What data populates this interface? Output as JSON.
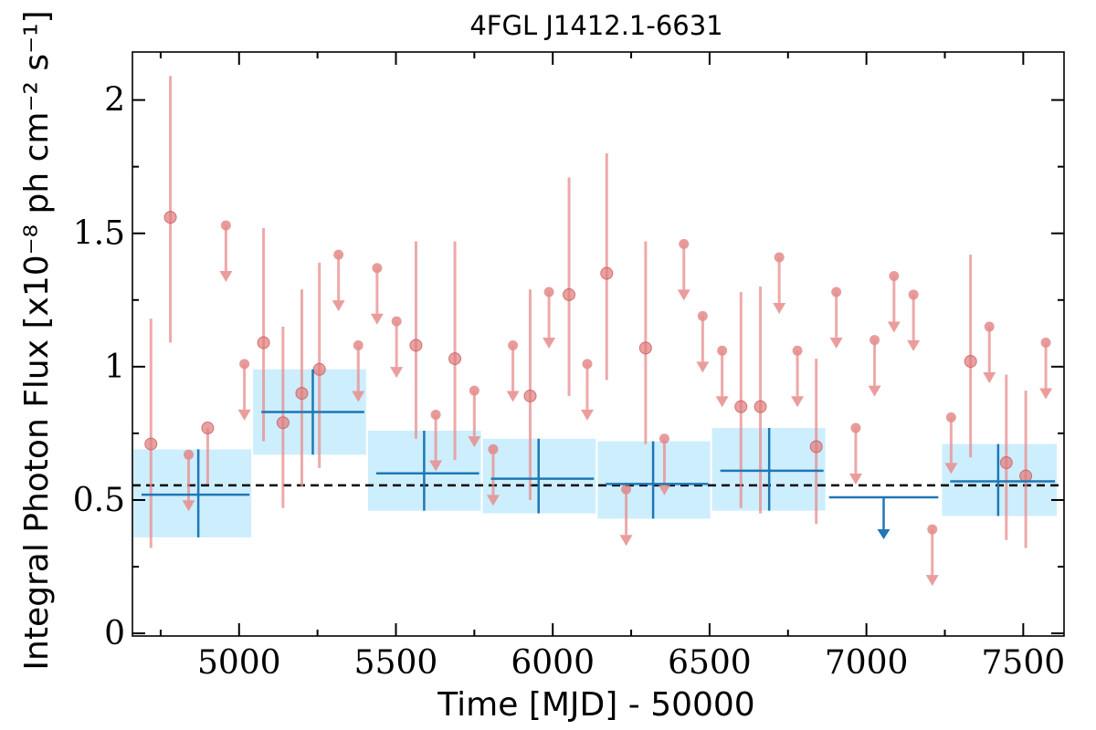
{
  "chart_data": {
    "type": "scatter",
    "title": "4FGL J1412.1-6631",
    "xlabel": "Time [MJD] - 50000",
    "ylabel": "Integral Photon Flux [x10⁻⁸ ph cm⁻² s⁻¹]",
    "xlim": [
      4660,
      7630
    ],
    "ylim": [
      -0.01,
      2.18
    ],
    "xticks": [
      5000,
      5500,
      6000,
      6500,
      7000,
      7500
    ],
    "xtick_labels": [
      "5000",
      "5500",
      "6000",
      "6500",
      "7000",
      "7500"
    ],
    "yticks": [
      0,
      0.5,
      1,
      1.5,
      2
    ],
    "ytick_labels": [
      "0",
      "0.5",
      "1",
      "1.5",
      "2"
    ],
    "grid": false,
    "average_flux": 0.555,
    "colors": {
      "short_bins": "#e88c8c",
      "short_bins_point": "#e07a7a",
      "long_bins": "#1f77b4",
      "long_bins_band": "#cdeefd",
      "average_line": "#000000"
    },
    "short_bin_points": [
      {
        "x": 4719,
        "y": 0.71,
        "lo": 0.32,
        "hi": 1.18
      },
      {
        "x": 4781,
        "y": 1.56,
        "lo": 1.09,
        "hi": 2.09
      },
      {
        "x": 4900,
        "y": 0.77,
        "lo": 0.56,
        "hi": 0.77
      }
    ],
    "short_bin_points_cont": [
      {
        "x": 5078,
        "y": 1.09,
        "lo": 0.72,
        "hi": 1.52
      },
      {
        "x": 5140,
        "y": 0.79,
        "lo": 0.47,
        "hi": 1.15
      },
      {
        "x": 5200,
        "y": 0.9,
        "lo": 0.55,
        "hi": 1.29
      },
      {
        "x": 5256,
        "y": 0.99,
        "lo": 0.62,
        "hi": 1.39
      },
      {
        "x": 5564,
        "y": 1.08,
        "lo": 0.73,
        "hi": 1.47
      },
      {
        "x": 5688,
        "y": 1.03,
        "lo": 0.65,
        "hi": 1.47
      },
      {
        "x": 5928,
        "y": 0.89,
        "lo": 0.5,
        "hi": 1.29
      },
      {
        "x": 6052,
        "y": 1.27,
        "lo": 0.89,
        "hi": 1.71
      },
      {
        "x": 6172,
        "y": 1.35,
        "lo": 0.95,
        "hi": 1.8
      },
      {
        "x": 6296,
        "y": 1.07,
        "lo": 0.71,
        "hi": 1.47
      },
      {
        "x": 6600,
        "y": 0.85,
        "lo": 0.47,
        "hi": 1.28
      },
      {
        "x": 6662,
        "y": 0.85,
        "lo": 0.45,
        "hi": 1.3
      },
      {
        "x": 6840,
        "y": 0.7,
        "lo": 0.41,
        "hi": 1.03
      },
      {
        "x": 7332,
        "y": 1.02,
        "lo": 0.66,
        "hi": 1.42
      },
      {
        "x": 7446,
        "y": 0.64,
        "lo": 0.35,
        "hi": 0.97
      },
      {
        "x": 7508,
        "y": 0.59,
        "lo": 0.32,
        "hi": 0.91
      }
    ],
    "short_bin_upper_limits": [
      {
        "x": 4839,
        "y": 0.67
      },
      {
        "x": 4958,
        "y": 1.53
      },
      {
        "x": 5017,
        "y": 1.01
      },
      {
        "x": 5317,
        "y": 1.42
      },
      {
        "x": 5380,
        "y": 1.08
      },
      {
        "x": 5440,
        "y": 1.37
      },
      {
        "x": 5502,
        "y": 1.17
      },
      {
        "x": 5627,
        "y": 0.82
      },
      {
        "x": 5750,
        "y": 0.91
      },
      {
        "x": 5810,
        "y": 0.69
      },
      {
        "x": 5873,
        "y": 1.08
      },
      {
        "x": 5988,
        "y": 1.28
      },
      {
        "x": 6110,
        "y": 1.01
      },
      {
        "x": 6234,
        "y": 0.54
      },
      {
        "x": 6356,
        "y": 0.73
      },
      {
        "x": 6418,
        "y": 1.46
      },
      {
        "x": 6478,
        "y": 1.19
      },
      {
        "x": 6540,
        "y": 1.06
      },
      {
        "x": 6722,
        "y": 1.41
      },
      {
        "x": 6780,
        "y": 1.06
      },
      {
        "x": 6904,
        "y": 1.28
      },
      {
        "x": 6966,
        "y": 0.77
      },
      {
        "x": 7026,
        "y": 1.1
      },
      {
        "x": 7088,
        "y": 1.34
      },
      {
        "x": 7150,
        "y": 1.27
      },
      {
        "x": 7210,
        "y": 0.39
      },
      {
        "x": 7270,
        "y": 0.81
      },
      {
        "x": 7392,
        "y": 1.15
      },
      {
        "x": 7572,
        "y": 1.09
      }
    ],
    "long_bins": [
      {
        "x_start": 4660,
        "x_end": 5042,
        "x_center": 4870,
        "y": 0.52,
        "lo": 0.36,
        "hi": 0.69
      },
      {
        "x_start": 5042,
        "x_end": 5408,
        "x_center": 5235,
        "y": 0.83,
        "lo": 0.67,
        "hi": 0.99
      },
      {
        "x_start": 5408,
        "x_end": 5774,
        "x_center": 5590,
        "y": 0.6,
        "lo": 0.46,
        "hi": 0.76
      },
      {
        "x_start": 5774,
        "x_end": 6140,
        "x_center": 5955,
        "y": 0.58,
        "lo": 0.45,
        "hi": 0.73
      },
      {
        "x_start": 6140,
        "x_end": 6505,
        "x_center": 6320,
        "y": 0.56,
        "lo": 0.43,
        "hi": 0.72
      },
      {
        "x_start": 6505,
        "x_end": 6872,
        "x_center": 6690,
        "y": 0.61,
        "lo": 0.46,
        "hi": 0.77
      },
      {
        "x_start": 7238,
        "x_end": 7610,
        "x_center": 7420,
        "y": 0.57,
        "lo": 0.44,
        "hi": 0.71
      }
    ],
    "long_bin_upper_limits": [
      {
        "x_start": 6872,
        "x_end": 7238,
        "x_center": 7055,
        "y": 0.51
      }
    ]
  }
}
